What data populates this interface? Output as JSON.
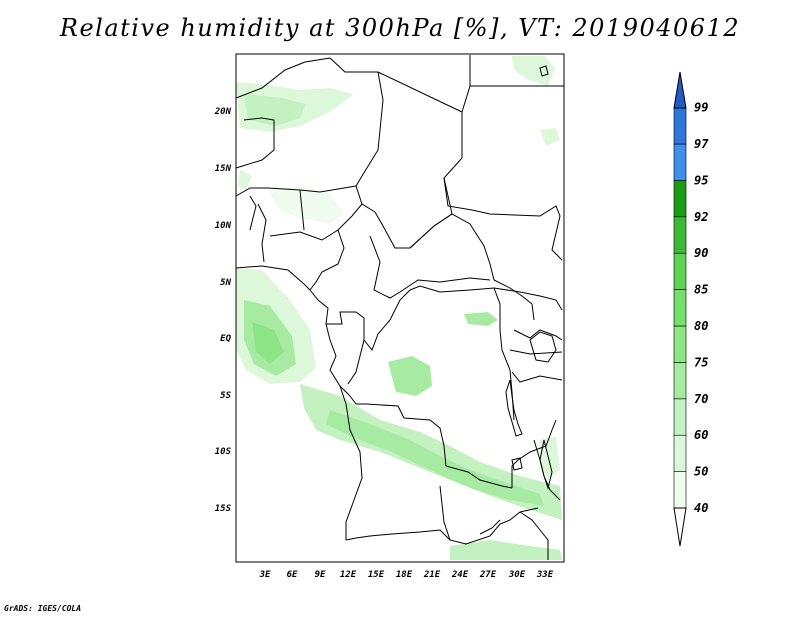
{
  "title": "Relative humidity at 300hPa [%], VT: 2019040612",
  "credit": "GrADS: IGES/COLA",
  "map": {
    "lat_labels": [
      "20N",
      "15N",
      "10N",
      "5N",
      "EQ",
      "5S",
      "10S",
      "15S"
    ],
    "lon_labels": [
      "3E",
      "6E",
      "9E",
      "12E",
      "15E",
      "18E",
      "21E",
      "24E",
      "27E",
      "30E",
      "33E"
    ]
  },
  "colorbar": {
    "levels": [
      "40",
      "50",
      "60",
      "70",
      "75",
      "80",
      "85",
      "90",
      "92",
      "95",
      "97",
      "99"
    ],
    "colors": [
      "#f0fcef",
      "#dcf7da",
      "#c3f1c0",
      "#a7eba2",
      "#8de586",
      "#74df6b",
      "#5cd452",
      "#3cb935",
      "#1a9c14",
      "#3d8fea",
      "#2f76dc",
      "#1f5bc8"
    ]
  }
}
